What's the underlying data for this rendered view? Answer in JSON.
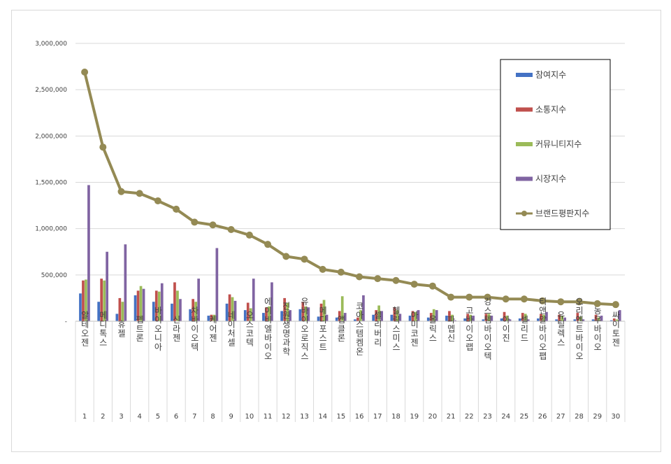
{
  "chart_data": {
    "type": "bar",
    "title": "",
    "xlabel": "",
    "ylabel": "",
    "ylim": [
      0,
      3000000
    ],
    "yticks": [
      0,
      500000,
      1000000,
      1500000,
      2000000,
      2500000,
      3000000
    ],
    "ytick_labels": [
      "-",
      "500,000",
      "1,000,000",
      "1,500,000",
      "2,000,000",
      "2,500,000",
      "3,000,000"
    ],
    "grid": "horizontal",
    "legend_position": "top-right",
    "x_numbers": [
      "1",
      "2",
      "3",
      "4",
      "5",
      "6",
      "7",
      "8",
      "9",
      "10",
      "11",
      "12",
      "13",
      "14",
      "15",
      "16",
      "17",
      "18",
      "19",
      "20",
      "21",
      "22",
      "23",
      "24",
      "25",
      "26",
      "27",
      "28",
      "29",
      "30"
    ],
    "categories": [
      "알테오젠",
      "메디톡스",
      "휴젤",
      "펩트론",
      "바이오니아",
      "신라젠",
      "차바이오텍",
      "케어젠",
      "네이처셀",
      "오스코텍",
      "에이비엘바이오",
      "진원생명과학",
      "유바이오로직스",
      "메디포스트",
      "앱클론",
      "코아스템켐온",
      "셀리버리",
      "헬릭스미스",
      "아미코젠",
      "올릭스",
      "파멥신",
      "고바이오랩",
      "강스템바이오텍",
      "아이진",
      "셀리드",
      "티앤알바이오팹",
      "유틸렉스",
      "오리엔트바이오",
      "농우바이오",
      "싸이토젠"
    ],
    "series": [
      {
        "name": "참여지수",
        "color": "#4472C4",
        "values": [
          300000,
          210000,
          80000,
          280000,
          210000,
          190000,
          130000,
          60000,
          190000,
          120000,
          90000,
          110000,
          130000,
          50000,
          40000,
          20000,
          70000,
          70000,
          60000,
          40000,
          60000,
          30000,
          20000,
          30000,
          30000,
          30000,
          20000,
          20000,
          20000,
          10000
        ]
      },
      {
        "name": "소통지수",
        "color": "#C0504D",
        "values": [
          440000,
          460000,
          250000,
          330000,
          330000,
          420000,
          240000,
          70000,
          290000,
          200000,
          150000,
          250000,
          210000,
          190000,
          110000,
          40000,
          120000,
          150000,
          110000,
          90000,
          110000,
          80000,
          80000,
          100000,
          90000,
          80000,
          70000,
          90000,
          70000,
          30000
        ]
      },
      {
        "name": "커뮤니티지수",
        "color": "#9BBB59",
        "values": [
          450000,
          440000,
          210000,
          380000,
          320000,
          330000,
          210000,
          70000,
          260000,
          140000,
          160000,
          200000,
          160000,
          230000,
          270000,
          120000,
          170000,
          120000,
          100000,
          130000,
          70000,
          70000,
          80000,
          60000,
          80000,
          70000,
          60000,
          50000,
          40000,
          20000
        ]
      },
      {
        "name": "시장지수",
        "color": "#8064A2",
        "values": [
          1470000,
          750000,
          830000,
          350000,
          410000,
          240000,
          460000,
          790000,
          220000,
          460000,
          420000,
          120000,
          150000,
          70000,
          90000,
          280000,
          110000,
          80000,
          120000,
          120000,
          10000,
          60000,
          60000,
          20000,
          20000,
          100000,
          40000,
          20000,
          60000,
          120000
        ]
      },
      {
        "name": "브랜드평판지수",
        "type": "line",
        "color": "#948A54",
        "values": [
          2690000,
          1880000,
          1400000,
          1380000,
          1300000,
          1210000,
          1070000,
          1040000,
          990000,
          930000,
          830000,
          700000,
          670000,
          560000,
          530000,
          480000,
          460000,
          440000,
          400000,
          380000,
          260000,
          260000,
          260000,
          240000,
          240000,
          220000,
          210000,
          210000,
          190000,
          180000
        ]
      }
    ]
  }
}
